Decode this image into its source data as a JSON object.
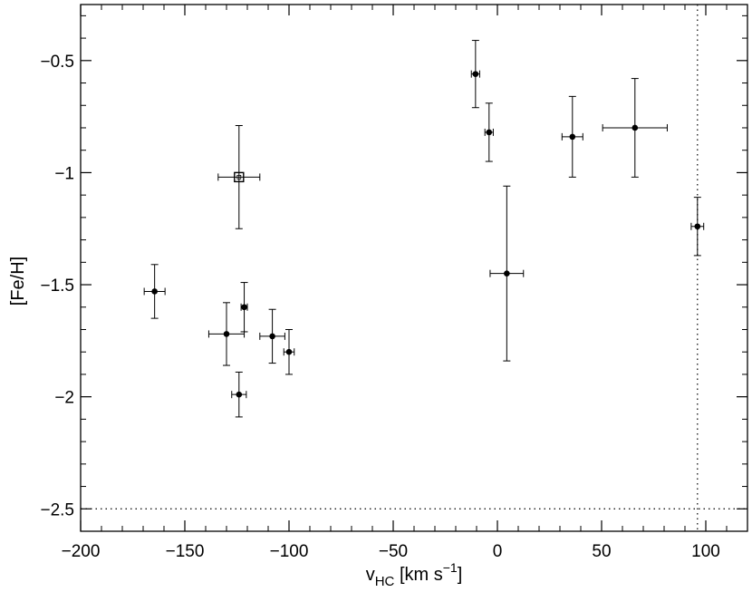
{
  "chart_data": {
    "type": "scatter",
    "xlabel": "v",
    "xlabel_sub": "HC",
    "xlabel_units_pre": " [km s",
    "xlabel_units_sup": "−1",
    "xlabel_units_post": "]",
    "ylabel": "[Fe/H]",
    "xlim": [
      -200,
      120
    ],
    "ylim": [
      -2.6,
      -0.25
    ],
    "xticks": [
      -200,
      -150,
      -100,
      -50,
      0,
      50,
      100
    ],
    "xtick_labels": [
      "−200",
      "−150",
      "−100",
      "−50",
      "0",
      "50",
      "100"
    ],
    "yticks": [
      -2.5,
      -2.0,
      -1.5,
      -1.0,
      -0.5
    ],
    "ytick_labels": [
      "−2.5",
      "−2",
      "−1.5",
      "−1",
      "−0.5"
    ],
    "reference_lines": {
      "vertical_x": 96,
      "horizontal_y": -2.5,
      "style": "dotted"
    },
    "grid": false,
    "points": [
      {
        "x": -164.5,
        "y": -1.53,
        "xerr": 5.0,
        "yerr": 0.12,
        "marker": "filled-circle"
      },
      {
        "x": -130.0,
        "y": -1.72,
        "xerr": 8.5,
        "yerr": 0.14,
        "marker": "filled-circle"
      },
      {
        "x": -124.0,
        "y": -1.99,
        "xerr": 3.5,
        "yerr": 0.1,
        "marker": "filled-circle"
      },
      {
        "x": -121.5,
        "y": -1.6,
        "xerr": 1.5,
        "yerr": 0.11,
        "marker": "filled-circle"
      },
      {
        "x": -108.0,
        "y": -1.73,
        "xerr": 6.0,
        "yerr": 0.12,
        "marker": "filled-circle"
      },
      {
        "x": -100.0,
        "y": -1.8,
        "xerr": 2.5,
        "yerr": 0.1,
        "marker": "filled-circle"
      },
      {
        "x": -124.0,
        "y": -1.02,
        "xerr": 10.0,
        "yerr": 0.23,
        "marker": "open-square"
      },
      {
        "x": -10.5,
        "y": -0.56,
        "xerr": 2.0,
        "yerr": 0.15,
        "marker": "filled-circle"
      },
      {
        "x": -4.0,
        "y": -0.82,
        "xerr": 2.0,
        "yerr": 0.13,
        "marker": "filled-circle"
      },
      {
        "x": 4.5,
        "y": -1.45,
        "xerr": 8.0,
        "yerr": 0.39,
        "marker": "filled-circle"
      },
      {
        "x": 36.0,
        "y": -0.84,
        "xerr": 5.0,
        "yerr": 0.18,
        "marker": "filled-circle"
      },
      {
        "x": 66.0,
        "y": -0.8,
        "xerr": 15.5,
        "yerr": 0.22,
        "marker": "filled-circle"
      },
      {
        "x": 96.0,
        "y": -1.24,
        "xerr": 3.0,
        "yerr": 0.13,
        "marker": "filled-circle"
      }
    ]
  },
  "colors": {
    "background": "#ffffff",
    "axes": "#000000",
    "markers": "#000000",
    "errorbars": "#000000",
    "reference_lines": "#000000"
  }
}
